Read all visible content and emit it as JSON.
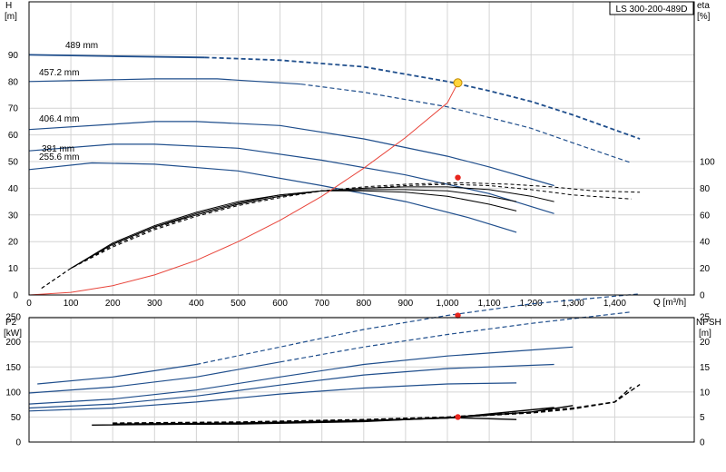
{
  "model_label": "LS 300-200-489D",
  "chart_data": [
    {
      "id": "head",
      "type": "line",
      "xlabel": "Q [m³/h]",
      "ylabel": "H",
      "yunit": "[m]",
      "y2label": "eta",
      "y2unit": "[%]",
      "xlim": [
        0,
        1500
      ],
      "ylim": [
        0,
        100
      ],
      "y2lim": [
        0,
        150
      ],
      "xticks": [
        "0",
        "100",
        "200",
        "300",
        "400",
        "500",
        "600",
        "700",
        "800",
        "900",
        "1,000",
        "1,100",
        "1,200",
        "1,300",
        "1,400"
      ],
      "yticks": [
        "0",
        "10",
        "20",
        "30",
        "40",
        "50",
        "60",
        "70",
        "80",
        "90"
      ],
      "y2ticks": [
        "0",
        "20",
        "40",
        "60",
        "80",
        "100"
      ],
      "grid": true,
      "head_curves": [
        {
          "name": "489 mm",
          "color": "#1f4e8c",
          "solid_to": 420,
          "points": [
            [
              0,
              90
            ],
            [
              200,
              89.5
            ],
            [
              420,
              89
            ],
            [
              600,
              88
            ],
            [
              800,
              85.5
            ],
            [
              1000,
              80
            ],
            [
              1100,
              76.5
            ],
            [
              1200,
              72.5
            ],
            [
              1300,
              67.5
            ],
            [
              1460,
              58.5
            ]
          ]
        },
        {
          "name": "457.2 mm",
          "color": "#1f4e8c",
          "solid_to": 650,
          "points": [
            [
              0,
              80
            ],
            [
              300,
              81
            ],
            [
              450,
              81
            ],
            [
              650,
              79
            ],
            [
              800,
              76
            ],
            [
              1000,
              70.5
            ],
            [
              1200,
              62.5
            ],
            [
              1300,
              57
            ],
            [
              1440,
              49.5
            ]
          ]
        },
        {
          "name": "406.4 mm",
          "color": "#1f4e8c",
          "solid_to": 1255,
          "points": [
            [
              0,
              62
            ],
            [
              300,
              65
            ],
            [
              400,
              65
            ],
            [
              600,
              63.5
            ],
            [
              800,
              58.5
            ],
            [
              1000,
              52
            ],
            [
              1100,
              48
            ],
            [
              1255,
              41
            ]
          ]
        },
        {
          "name": "381 mm",
          "color": "#1f4e8c",
          "solid_to": 1255,
          "points": [
            [
              0,
              54
            ],
            [
              200,
              56.5
            ],
            [
              300,
              56.5
            ],
            [
              500,
              55
            ],
            [
              700,
              50.5
            ],
            [
              900,
              45
            ],
            [
              1100,
              38
            ],
            [
              1255,
              30.5
            ]
          ]
        },
        {
          "name": "255.6 mm",
          "color": "#1f4e8c",
          "solid_to": 1165,
          "points": [
            [
              0,
              47
            ],
            [
              150,
              49.5
            ],
            [
              300,
              49
            ],
            [
              500,
              46.5
            ],
            [
              700,
              41
            ],
            [
              900,
              35
            ],
            [
              1050,
              29
            ],
            [
              1165,
              23.5
            ]
          ]
        }
      ],
      "eta_curves": [
        {
          "points": [
            [
              30,
              5
            ],
            [
              100,
              20
            ],
            [
              200,
              37
            ],
            [
              300,
              50
            ],
            [
              400,
              60
            ],
            [
              500,
              68
            ],
            [
              600,
              74
            ],
            [
              700,
              78
            ],
            [
              800,
              81
            ],
            [
              900,
              83
            ],
            [
              1000,
              84
            ],
            [
              1050,
              84
            ],
            [
              1150,
              83
            ],
            [
              1250,
              81
            ],
            [
              1350,
              78
            ],
            [
              1460,
              77
            ]
          ],
          "dashed": true
        },
        {
          "points": [
            [
              30,
              5
            ],
            [
              100,
              20
            ],
            [
              200,
              36
            ],
            [
              300,
              49
            ],
            [
              400,
              59
            ],
            [
              500,
              67
            ],
            [
              600,
              73
            ],
            [
              700,
              78
            ],
            [
              800,
              80
            ],
            [
              900,
              82
            ],
            [
              1000,
              83
            ],
            [
              1100,
              82
            ],
            [
              1200,
              79
            ],
            [
              1300,
              75
            ],
            [
              1440,
              72
            ]
          ],
          "dashed": true
        },
        {
          "points": [
            [
              100,
              20
            ],
            [
              200,
              38
            ],
            [
              300,
              51
            ],
            [
              400,
              60
            ],
            [
              500,
              68
            ],
            [
              600,
              74
            ],
            [
              700,
              78
            ],
            [
              800,
              80
            ],
            [
              900,
              81
            ],
            [
              1000,
              81
            ],
            [
              1100,
              79
            ],
            [
              1200,
              74
            ],
            [
              1255,
              70
            ]
          ]
        },
        {
          "points": [
            [
              100,
              20
            ],
            [
              200,
              38
            ],
            [
              300,
              51
            ],
            [
              400,
              61
            ],
            [
              500,
              69
            ],
            [
              600,
              75
            ],
            [
              700,
              78
            ],
            [
              800,
              79
            ],
            [
              900,
              79
            ],
            [
              1000,
              78
            ],
            [
              1100,
              74
            ],
            [
              1165,
              70
            ]
          ]
        },
        {
          "points": [
            [
              100,
              20
            ],
            [
              200,
              39
            ],
            [
              300,
              52
            ],
            [
              400,
              62
            ],
            [
              500,
              70
            ],
            [
              600,
              75
            ],
            [
              700,
              78
            ],
            [
              800,
              78
            ],
            [
              900,
              77
            ],
            [
              1000,
              74
            ],
            [
              1100,
              68
            ],
            [
              1165,
              63
            ]
          ]
        }
      ],
      "system_curve": [
        [
          0,
          0
        ],
        [
          100,
          1
        ],
        [
          200,
          3.5
        ],
        [
          300,
          7.5
        ],
        [
          400,
          13
        ],
        [
          500,
          20
        ],
        [
          600,
          28
        ],
        [
          700,
          37
        ],
        [
          800,
          47.5
        ],
        [
          900,
          59
        ],
        [
          1000,
          72
        ],
        [
          1025,
          79.5
        ]
      ],
      "duty_point": {
        "q": 1025,
        "h": 79.5
      },
      "eta_point": {
        "q": 1025,
        "eta": 88
      }
    },
    {
      "id": "power_npsh",
      "type": "line",
      "xlim": [
        0,
        1500
      ],
      "ylabel": "P2",
      "yunit": "[kW]",
      "y2label": "NPSH",
      "y2unit": "[m]",
      "ylim": [
        0,
        300
      ],
      "y2lim": [
        0,
        30
      ],
      "yticks": [
        "0",
        "50",
        "100",
        "150",
        "200",
        "250"
      ],
      "y2ticks": [
        "0",
        "5",
        "10",
        "15",
        "20",
        "25"
      ],
      "grid": true,
      "p2_curves": [
        {
          "solid_to": 450,
          "dashed": true,
          "points": [
            [
              20,
              116
            ],
            [
              200,
              130
            ],
            [
              400,
              155
            ],
            [
              600,
              190
            ],
            [
              800,
              225
            ],
            [
              1000,
              253
            ],
            [
              1200,
              276
            ],
            [
              1460,
              296
            ]
          ]
        },
        {
          "solid_to": 650,
          "dashed": true,
          "points": [
            [
              0,
              98
            ],
            [
              200,
              110
            ],
            [
              400,
              130
            ],
            [
              600,
              160
            ],
            [
              800,
              190
            ],
            [
              1000,
              215
            ],
            [
              1200,
              237
            ],
            [
              1440,
              260
            ]
          ]
        },
        {
          "points": [
            [
              0,
              76
            ],
            [
              200,
              86
            ],
            [
              400,
              104
            ],
            [
              600,
              130
            ],
            [
              800,
              155
            ],
            [
              1000,
              172
            ],
            [
              1200,
              184
            ],
            [
              1300,
              190
            ]
          ]
        },
        {
          "points": [
            [
              0,
              68
            ],
            [
              200,
              76
            ],
            [
              400,
              92
            ],
            [
              600,
              114
            ],
            [
              800,
              134
            ],
            [
              1000,
              147
            ],
            [
              1255,
              155
            ]
          ]
        },
        {
          "points": [
            [
              0,
              62
            ],
            [
              200,
              68
            ],
            [
              400,
              80
            ],
            [
              600,
              96
            ],
            [
              800,
              108
            ],
            [
              1000,
              116
            ],
            [
              1165,
              118
            ]
          ]
        }
      ],
      "npsh_curves": [
        {
          "dashed": true,
          "points": [
            [
              200,
              3.8
            ],
            [
              500,
              4
            ],
            [
              800,
              4.5
            ],
            [
              1000,
              5
            ],
            [
              1200,
              6
            ],
            [
              1300,
              6.8
            ],
            [
              1400,
              8
            ],
            [
              1460,
              11.5
            ]
          ]
        },
        {
          "dashed": true,
          "points": [
            [
              200,
              3.7
            ],
            [
              500,
              3.9
            ],
            [
              800,
              4.4
            ],
            [
              1000,
              4.9
            ],
            [
              1200,
              5.8
            ],
            [
              1300,
              6.6
            ],
            [
              1400,
              8
            ],
            [
              1440,
              11
            ]
          ]
        },
        {
          "points": [
            [
              200,
              3.6
            ],
            [
              500,
              3.8
            ],
            [
              800,
              4.3
            ],
            [
              1000,
              4.8
            ],
            [
              1200,
              6
            ],
            [
              1300,
              7.3
            ]
          ]
        },
        {
          "points": [
            [
              150,
              3.4
            ],
            [
              500,
              3.7
            ],
            [
              800,
              4.2
            ],
            [
              1000,
              4.8
            ],
            [
              1255,
              6.9
            ]
          ]
        },
        {
          "points": [
            [
              200,
              3.5
            ],
            [
              500,
              3.6
            ],
            [
              800,
              4.1
            ],
            [
              1000,
              4.9
            ],
            [
              1165,
              4.5
            ]
          ]
        }
      ],
      "p2_point": {
        "q": 1025,
        "p": 253
      },
      "npsh_point": {
        "q": 1025,
        "npsh": 5
      }
    }
  ]
}
